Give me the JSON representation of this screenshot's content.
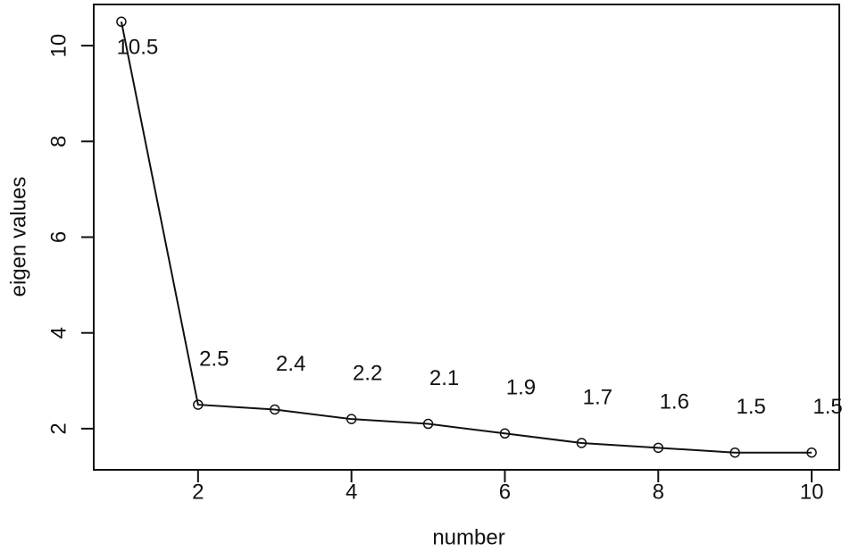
{
  "chart_data": {
    "type": "line",
    "x_label": "number",
    "y_label": "eigen values",
    "x": [
      1,
      2,
      3,
      4,
      5,
      6,
      7,
      8,
      9,
      10
    ],
    "values": [
      10.5,
      2.5,
      2.4,
      2.2,
      2.1,
      1.9,
      1.7,
      1.6,
      1.5,
      1.5
    ],
    "color": "#111111",
    "xlim": [
      0.64,
      10.36
    ],
    "xticks": [
      2,
      4,
      6,
      8,
      10
    ],
    "ylim": [
      1.14,
      10.86
    ],
    "yticks": [
      2,
      4,
      6,
      8,
      10
    ]
  }
}
